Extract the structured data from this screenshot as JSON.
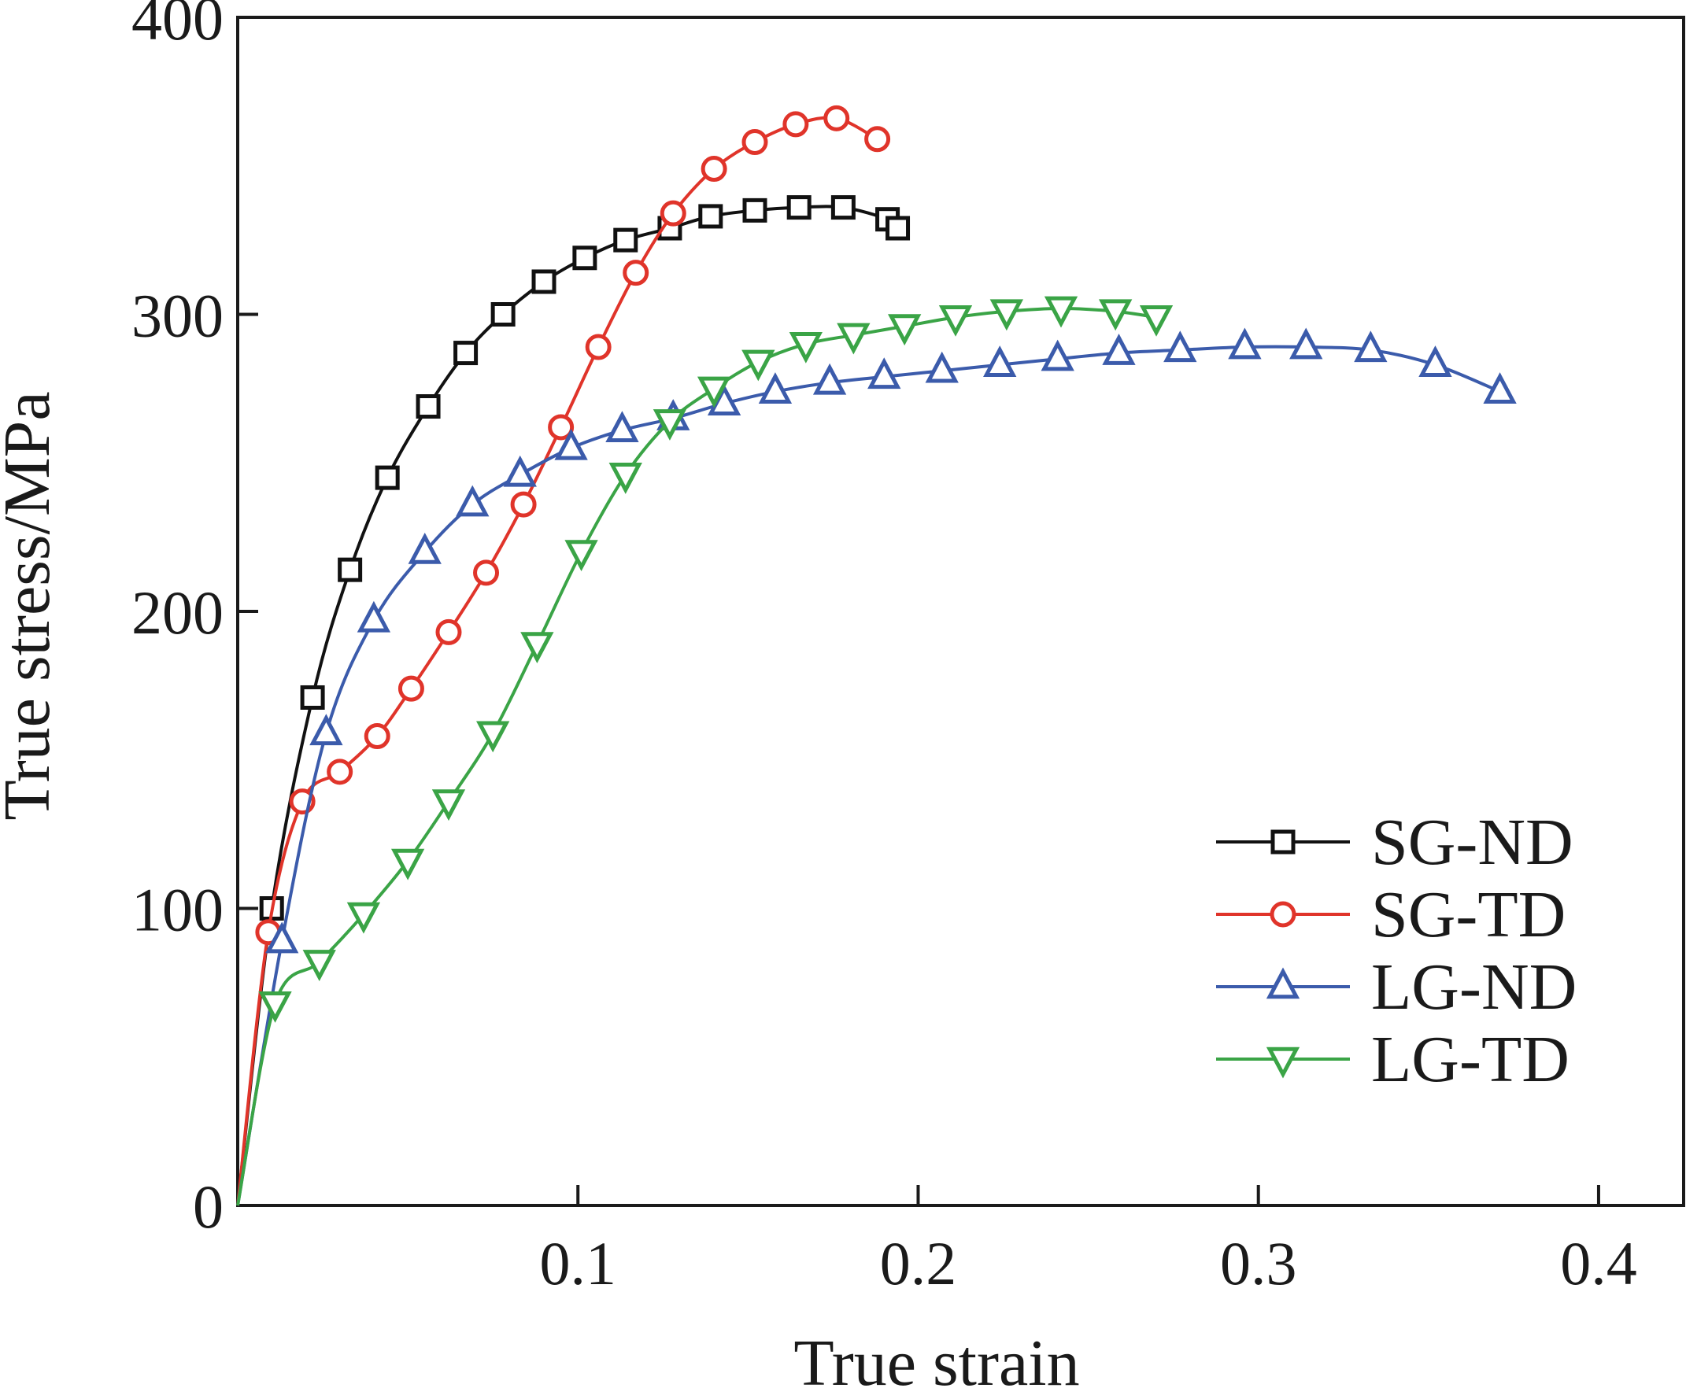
{
  "chart_data": {
    "type": "line",
    "title": "",
    "xlabel": "True strain",
    "ylabel": "True stress/MPa",
    "xlim": [
      0,
      0.425
    ],
    "ylim": [
      0,
      400
    ],
    "x_ticks": [
      0.1,
      0.2,
      0.3,
      0.4
    ],
    "x_tick_labels": [
      "0.1",
      "0.2",
      "0.3",
      "0.4"
    ],
    "y_ticks": [
      0,
      100,
      200,
      300,
      400
    ],
    "y_tick_labels": [
      "0",
      "100",
      "200",
      "300",
      "400"
    ],
    "grid": false,
    "legend_position": "bottom-right",
    "series": [
      {
        "name": "SG-ND",
        "color": "#111111",
        "marker": "square",
        "x": [
          0.0,
          0.01,
          0.022,
          0.033,
          0.044,
          0.056,
          0.067,
          0.078,
          0.09,
          0.102,
          0.114,
          0.127,
          0.139,
          0.152,
          0.165,
          0.178,
          0.191,
          0.194
        ],
        "y": [
          0,
          100,
          171,
          214,
          245,
          269,
          287,
          300,
          311,
          319,
          325,
          329,
          333,
          335,
          336,
          336,
          332,
          329
        ]
      },
      {
        "name": "SG-TD",
        "color": "#e0342a",
        "marker": "circle",
        "x": [
          0.0,
          0.009,
          0.019,
          0.03,
          0.041,
          0.051,
          0.062,
          0.073,
          0.084,
          0.095,
          0.106,
          0.117,
          0.128,
          0.14,
          0.152,
          0.164,
          0.176,
          0.188
        ],
        "y": [
          0,
          92,
          136,
          146,
          158,
          174,
          193,
          213,
          236,
          262,
          289,
          314,
          334,
          349,
          358,
          364,
          366,
          359
        ]
      },
      {
        "name": "LG-ND",
        "color": "#3b5bab",
        "marker": "triangle-up",
        "x": [
          0.0,
          0.013,
          0.026,
          0.04,
          0.055,
          0.069,
          0.083,
          0.098,
          0.113,
          0.128,
          0.143,
          0.158,
          0.174,
          0.19,
          0.207,
          0.224,
          0.241,
          0.259,
          0.277,
          0.296,
          0.314,
          0.333,
          0.352,
          0.371
        ],
        "y": [
          0,
          89,
          159,
          197,
          220,
          236,
          246,
          255,
          261,
          265,
          270,
          274,
          277,
          279,
          281,
          283,
          285,
          287,
          288,
          289,
          289,
          288,
          283,
          274
        ]
      },
      {
        "name": "LG-TD",
        "color": "#3aa446",
        "marker": "triangle-down",
        "x": [
          0.0,
          0.011,
          0.024,
          0.037,
          0.05,
          0.062,
          0.075,
          0.088,
          0.101,
          0.114,
          0.127,
          0.14,
          0.153,
          0.167,
          0.181,
          0.196,
          0.211,
          0.226,
          0.242,
          0.258,
          0.27
        ],
        "y": [
          0,
          68,
          82,
          98,
          116,
          136,
          159,
          189,
          220,
          246,
          264,
          275,
          284,
          290,
          293,
          296,
          299,
          301,
          302,
          301,
          299
        ]
      }
    ]
  }
}
